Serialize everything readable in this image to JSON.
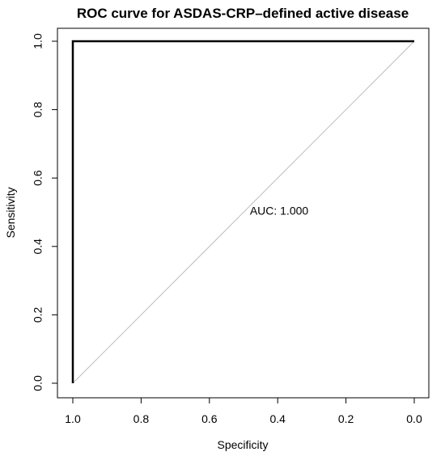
{
  "chart_data": {
    "type": "line",
    "title": "ROC curve for ASDAS-CRP–defined active disease",
    "xlabel": "Specificity",
    "ylabel": "Sensitivity",
    "xlim": [
      1.0,
      0.0
    ],
    "ylim": [
      0.0,
      1.0
    ],
    "x_reversed": true,
    "x_ticks": [
      1.0,
      0.8,
      0.6,
      0.4,
      0.2,
      0.0
    ],
    "x_tick_labels": [
      "1.0",
      "0.8",
      "0.6",
      "0.4",
      "0.2",
      "0.0"
    ],
    "y_ticks": [
      0.0,
      0.2,
      0.4,
      0.6,
      0.8,
      1.0
    ],
    "y_tick_labels": [
      "0.0",
      "0.2",
      "0.4",
      "0.6",
      "0.8",
      "1.0"
    ],
    "grid": false,
    "series": [
      {
        "specificity": [
          1.0,
          1.0,
          0.0
        ],
        "sensitivity": [
          0.0,
          1.0,
          1.0
        ],
        "color": "#000000"
      }
    ],
    "reference_line": {
      "specificity": [
        1.0,
        0.0
      ],
      "sensitivity": [
        0.0,
        1.0
      ],
      "color": "#bdbdbd"
    },
    "annotation": {
      "text": "AUC: 1.000",
      "specificity": 0.5,
      "sensitivity": 0.5
    }
  }
}
